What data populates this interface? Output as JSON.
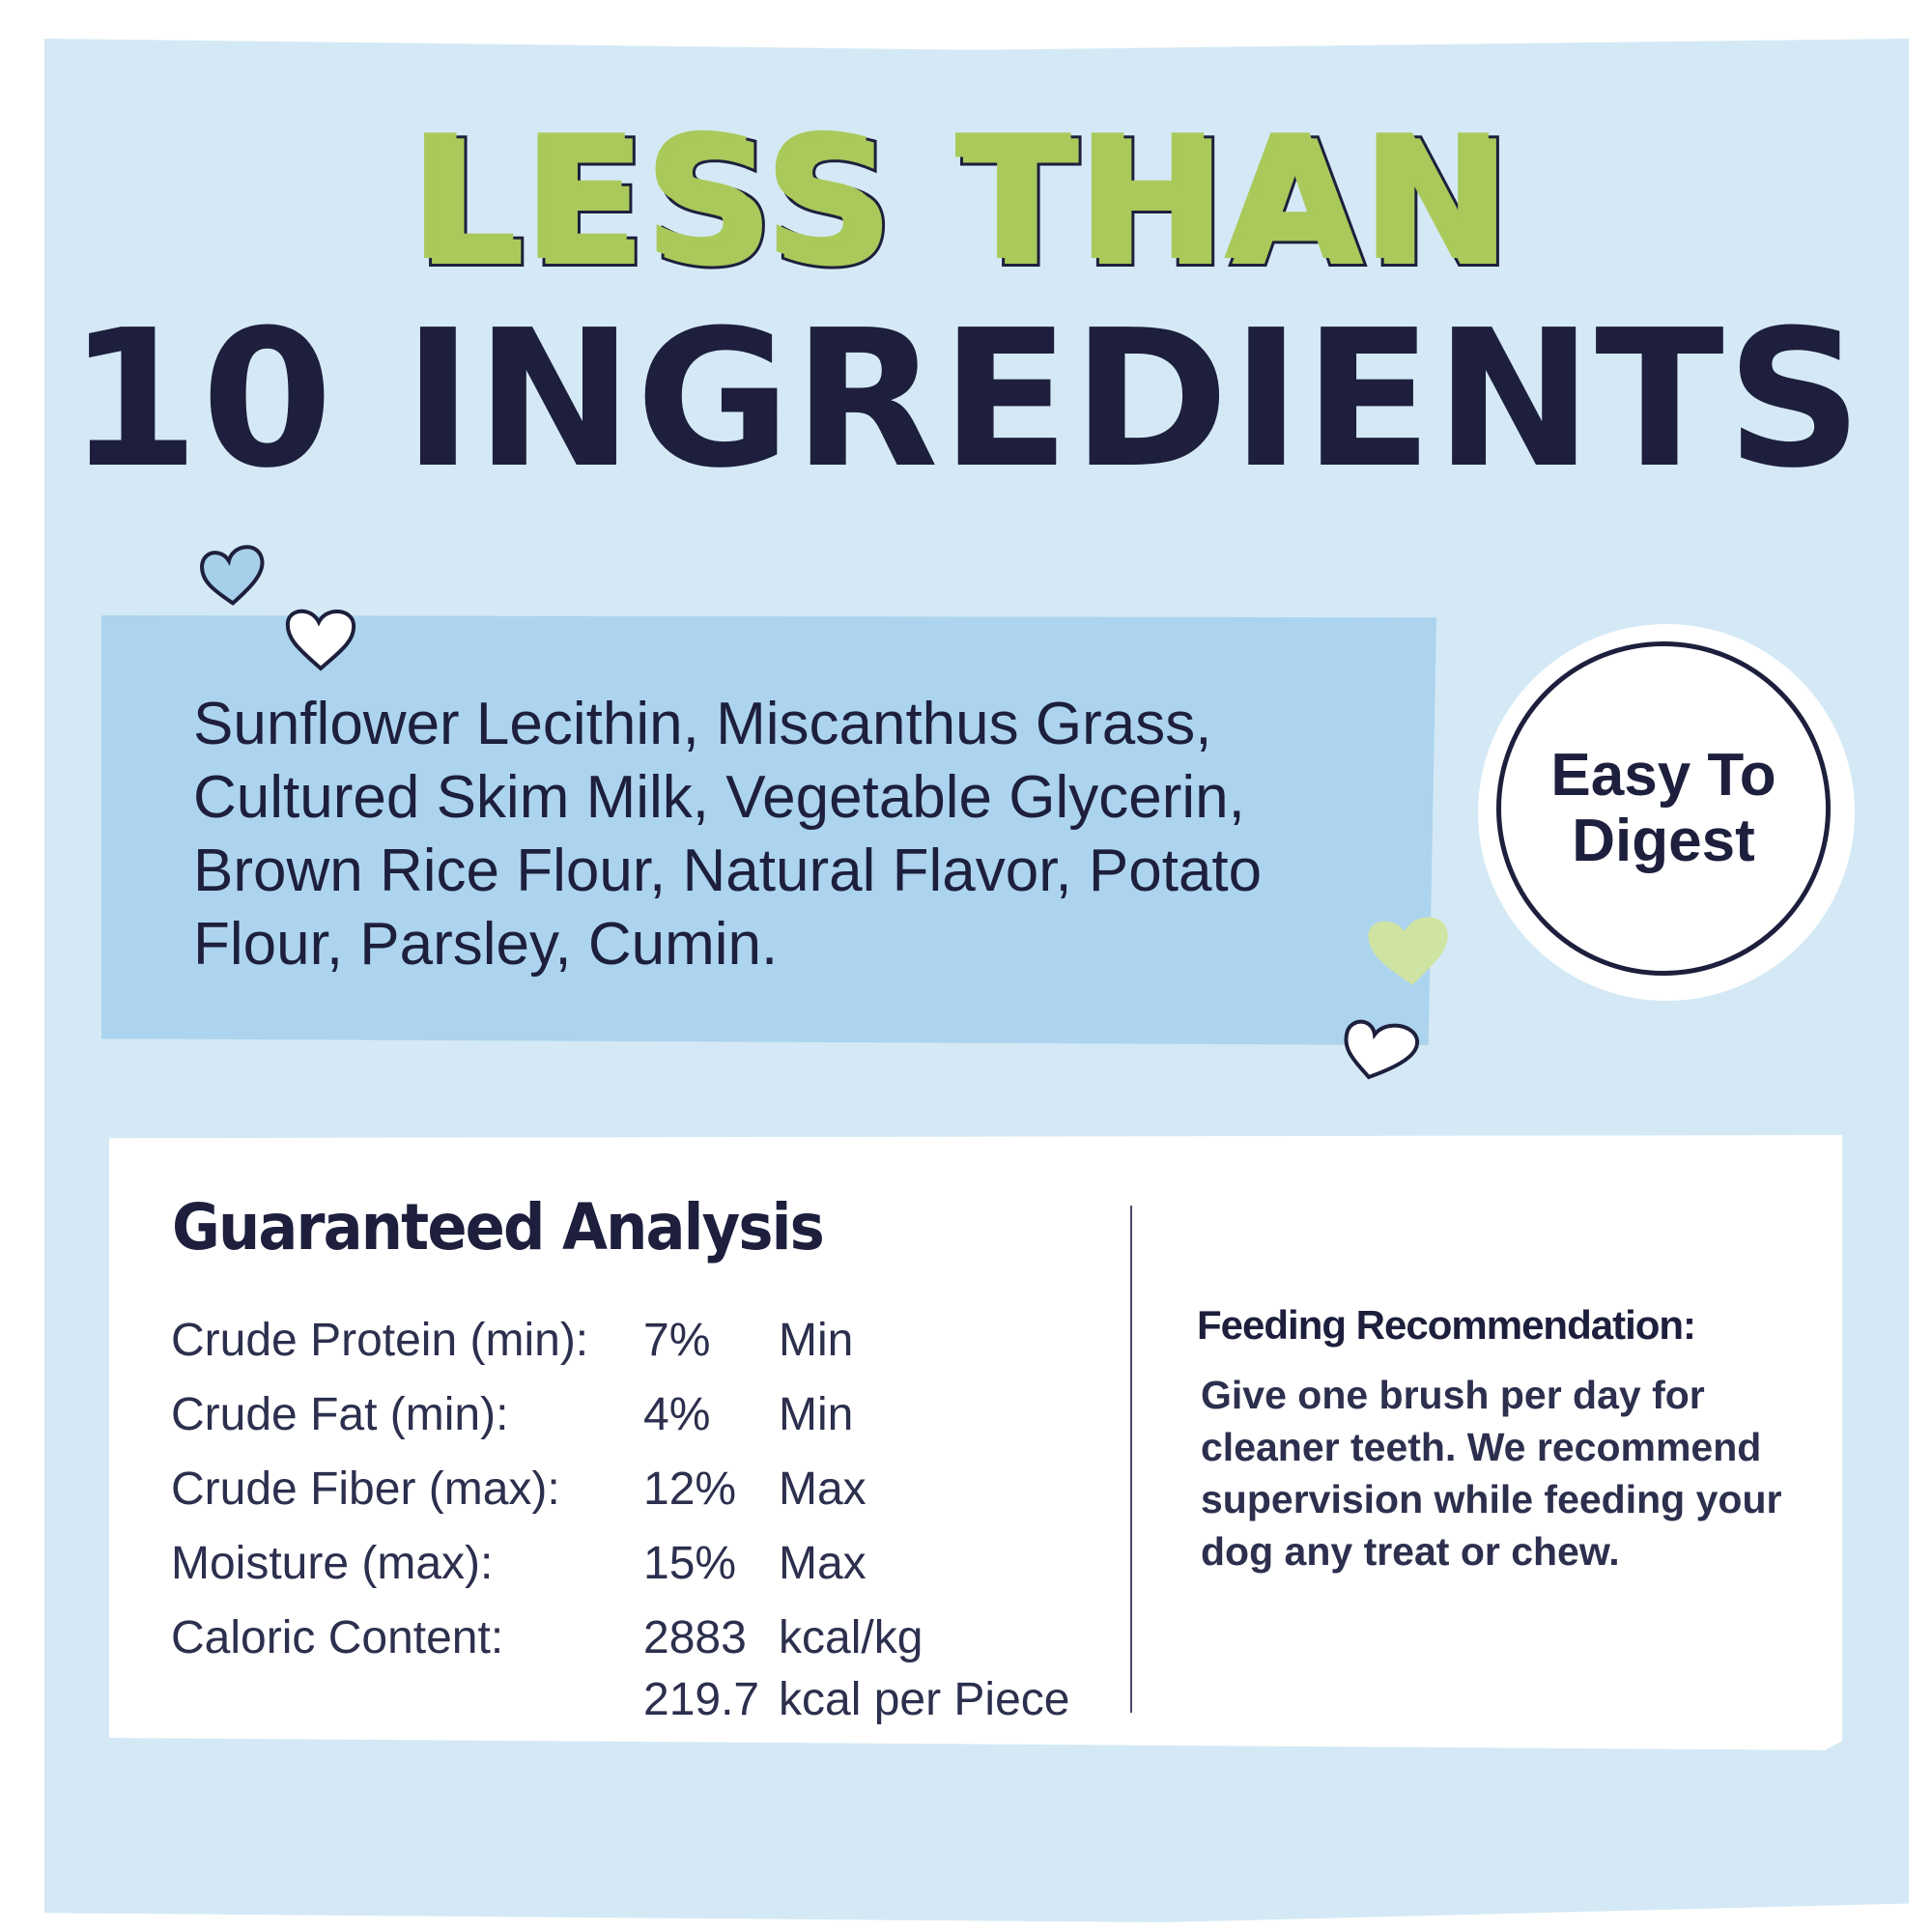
{
  "headline": {
    "line1": "LESS THAN",
    "line2": "10 INGREDIENTS"
  },
  "ingredients": {
    "text": "Sunflower Lecithin, Miscanthus Grass, Cultured Skim Milk, Vegetable Glycerin, Brown Rice Flour, Natural Flavor, Potato Flour, Parsley, Cumin."
  },
  "badge": {
    "line1": "Easy To",
    "line2": "Digest"
  },
  "analysis": {
    "title": "Guaranteed Analysis",
    "rows": [
      {
        "label": "Crude Protein (min):",
        "value": "7%",
        "unit": "Min"
      },
      {
        "label": "Crude Fat (min):",
        "value": "4%",
        "unit": "Min"
      },
      {
        "label": "Crude Fiber (max):",
        "value": "12%",
        "unit": "Max"
      },
      {
        "label": "Moisture (max):",
        "value": "15%",
        "unit": "Max"
      },
      {
        "label": "Caloric Content:",
        "value": "2883",
        "unit": "kcal/kg"
      },
      {
        "label": "",
        "value": "219.7",
        "unit": "kcal per Piece"
      }
    ]
  },
  "feeding": {
    "title": "Feeding Recommendation:",
    "text": "Give one brush per day for cleaner teeth. We recommend supervision while feeding your dog any treat or chew."
  },
  "colors": {
    "background": "#d4e9f5",
    "ingredients_box": "#acd4ee",
    "accent_green": "#a9c95a",
    "navy": "#1d1f3d",
    "panel": "#ffffff"
  },
  "icons": [
    "heart-icon-blue",
    "heart-icon-white",
    "heart-icon-green",
    "heart-icon-white"
  ]
}
